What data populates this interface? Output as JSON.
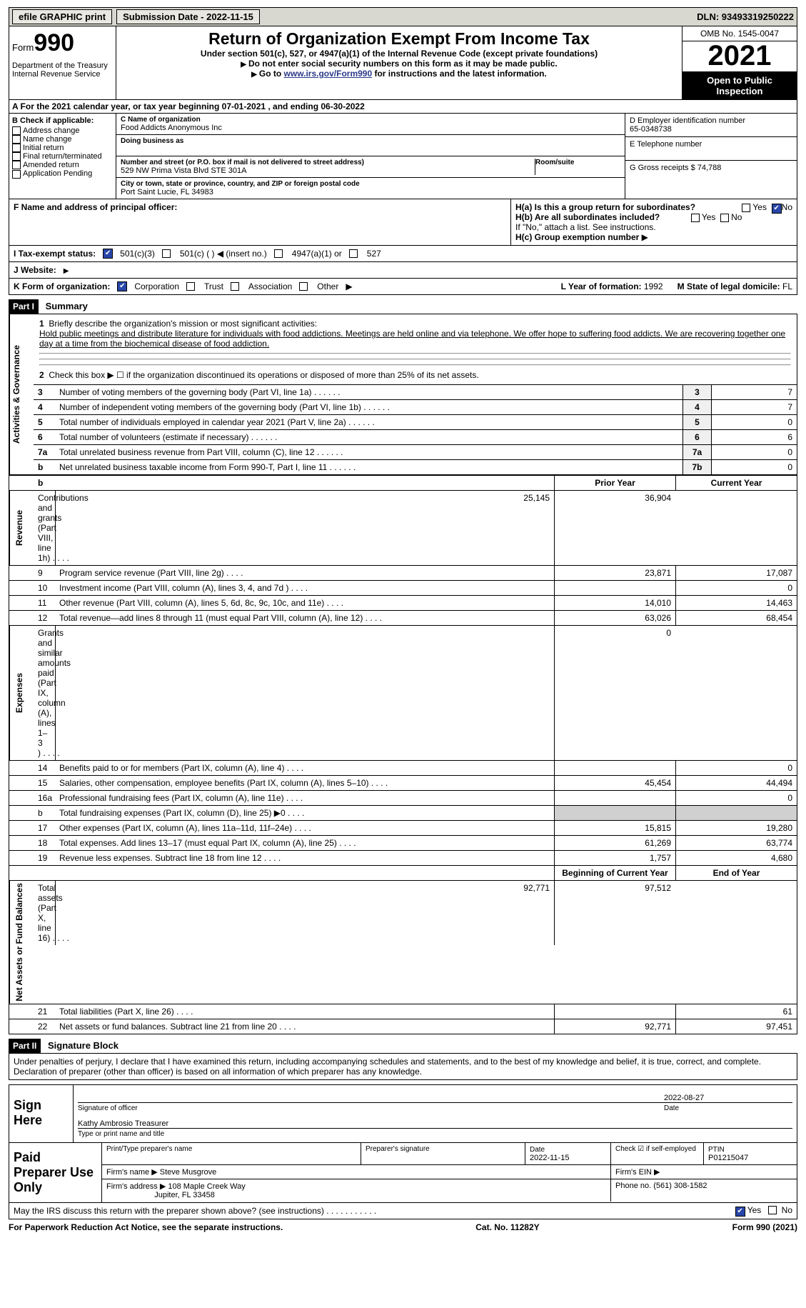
{
  "topbar": {
    "efile_label": "efile GRAPHIC print",
    "submission_label": "Submission Date - 2022-11-15",
    "dln_label": "DLN: 93493319250222"
  },
  "header": {
    "form_word": "Form",
    "form_number": "990",
    "dept": "Department of the Treasury Internal Revenue Service",
    "title": "Return of Organization Exempt From Income Tax",
    "sub1": "Under section 501(c), 527, or 4947(a)(1) of the Internal Revenue Code (except private foundations)",
    "sub2a": "Do not enter social security numbers on this form as it may be made public.",
    "sub2b_pre": "Go to ",
    "sub2b_link": "www.irs.gov/Form990",
    "sub2b_post": " for instructions and the latest information.",
    "omb": "OMB No. 1545-0047",
    "year": "2021",
    "open": "Open to Public Inspection"
  },
  "row_a": "A For the 2021 calendar year, or tax year beginning 07-01-2021   , and ending 06-30-2022",
  "section_b": {
    "b_hd": "B Check if applicable:",
    "b_items": [
      "Address change",
      "Name change",
      "Initial return",
      "Final return/terminated",
      "Amended return",
      "Application Pending"
    ],
    "c_name_lab": "C Name of organization",
    "c_name": "Food Addicts Anonymous Inc",
    "dba_lab": "Doing business as",
    "addr_lab": "Number and street (or P.O. box if mail is not delivered to street address)",
    "room_lab": "Room/suite",
    "addr": "529 NW Prima Vista Blvd STE 301A",
    "city_lab": "City or town, state or province, country, and ZIP or foreign postal code",
    "city": "Port Saint Lucie, FL  34983",
    "d_lab": "D Employer identification number",
    "d_val": "65-0348738",
    "e_lab": "E Telephone number",
    "g_lab": "G Gross receipts $",
    "g_val": "74,788"
  },
  "section_fh": {
    "f_lab": "F Name and address of principal officer:",
    "ha_lab": "H(a)  Is this a group return for subordinates?",
    "hb_lab": "H(b)  Are all subordinates included?",
    "hb_note": "If \"No,\" attach a list. See instructions.",
    "hc_lab": "H(c)  Group exemption number",
    "yes": "Yes",
    "no": "No",
    "i_lab": "I  Tax-exempt status:",
    "i_opts": [
      "501(c)(3)",
      "501(c) (  ) ◀ (insert no.)",
      "4947(a)(1) or",
      "527"
    ],
    "j_lab": "J  Website:",
    "k_lab": "K Form of organization:",
    "k_opts": [
      "Corporation",
      "Trust",
      "Association",
      "Other"
    ],
    "l_lab": "L Year of formation:",
    "l_val": "1992",
    "m_lab": "M State of legal domicile:",
    "m_val": "FL"
  },
  "part1": {
    "part_label": "Part I",
    "part_title": "Summary",
    "side_labels": [
      "Activities & Governance",
      "Revenue",
      "Expenses",
      "Net Assets or Fund Balances"
    ],
    "line1_lab": "Briefly describe the organization's mission or most significant activities:",
    "line1_text": "Hold public meetings and distribute literature for individuals with food addictions. Meetings are held online and via telephone. We offer hope to suffering food addicts. We are recovering together one day at a time from the biochemical disease of food addiction.",
    "line2": "Check this box ▶ ☐  if the organization discontinued its operations or disposed of more than 25% of its net assets.",
    "lines_gov": [
      {
        "n": "3",
        "t": "Number of voting members of the governing body (Part VI, line 1a)",
        "box": "3",
        "v": "7"
      },
      {
        "n": "4",
        "t": "Number of independent voting members of the governing body (Part VI, line 1b)",
        "box": "4",
        "v": "7"
      },
      {
        "n": "5",
        "t": "Total number of individuals employed in calendar year 2021 (Part V, line 2a)",
        "box": "5",
        "v": "0"
      },
      {
        "n": "6",
        "t": "Total number of volunteers (estimate if necessary)",
        "box": "6",
        "v": "6"
      },
      {
        "n": "7a",
        "t": "Total unrelated business revenue from Part VIII, column (C), line 12",
        "box": "7a",
        "v": "0"
      },
      {
        "n": "b",
        "t": "Net unrelated business taxable income from Form 990-T, Part I, line 11",
        "box": "7b",
        "v": "0"
      }
    ],
    "col_prior": "Prior Year",
    "col_current": "Current Year",
    "lines_rev": [
      {
        "n": "8",
        "t": "Contributions and grants (Part VIII, line 1h)",
        "p": "25,145",
        "c": "36,904"
      },
      {
        "n": "9",
        "t": "Program service revenue (Part VIII, line 2g)",
        "p": "23,871",
        "c": "17,087"
      },
      {
        "n": "10",
        "t": "Investment income (Part VIII, column (A), lines 3, 4, and 7d )",
        "p": "",
        "c": "0"
      },
      {
        "n": "11",
        "t": "Other revenue (Part VIII, column (A), lines 5, 6d, 8c, 9c, 10c, and 11e)",
        "p": "14,010",
        "c": "14,463"
      },
      {
        "n": "12",
        "t": "Total revenue—add lines 8 through 11 (must equal Part VIII, column (A), line 12)",
        "p": "63,026",
        "c": "68,454"
      }
    ],
    "lines_exp": [
      {
        "n": "13",
        "t": "Grants and similar amounts paid (Part IX, column (A), lines 1–3 )",
        "p": "",
        "c": "0"
      },
      {
        "n": "14",
        "t": "Benefits paid to or for members (Part IX, column (A), line 4)",
        "p": "",
        "c": "0"
      },
      {
        "n": "15",
        "t": "Salaries, other compensation, employee benefits (Part IX, column (A), lines 5–10)",
        "p": "45,454",
        "c": "44,494"
      },
      {
        "n": "16a",
        "t": "Professional fundraising fees (Part IX, column (A), line 11e)",
        "p": "",
        "c": "0"
      },
      {
        "n": "b",
        "t": "Total fundraising expenses (Part IX, column (D), line 25) ▶0",
        "p": "GREY",
        "c": "GREY"
      },
      {
        "n": "17",
        "t": "Other expenses (Part IX, column (A), lines 11a–11d, 11f–24e)",
        "p": "15,815",
        "c": "19,280"
      },
      {
        "n": "18",
        "t": "Total expenses. Add lines 13–17 (must equal Part IX, column (A), line 25)",
        "p": "61,269",
        "c": "63,774"
      },
      {
        "n": "19",
        "t": "Revenue less expenses. Subtract line 18 from line 12",
        "p": "1,757",
        "c": "4,680"
      }
    ],
    "col_begin": "Beginning of Current Year",
    "col_end": "End of Year",
    "lines_net": [
      {
        "n": "20",
        "t": "Total assets (Part X, line 16)",
        "p": "92,771",
        "c": "97,512"
      },
      {
        "n": "21",
        "t": "Total liabilities (Part X, line 26)",
        "p": "",
        "c": "61"
      },
      {
        "n": "22",
        "t": "Net assets or fund balances. Subtract line 21 from line 20",
        "p": "92,771",
        "c": "97,451"
      }
    ]
  },
  "part2": {
    "part_label": "Part II",
    "part_title": "Signature Block",
    "decl": "Under penalties of perjury, I declare that I have examined this return, including accompanying schedules and statements, and to the best of my knowledge and belief, it is true, correct, and complete. Declaration of preparer (other than officer) is based on all information of which preparer has any knowledge.",
    "sign_here": "Sign Here",
    "sig_officer": "Signature of officer",
    "sig_date": "2022-08-27",
    "date_lab": "Date",
    "officer": "Kathy Ambrosio Treasurer",
    "type_lab": "Type or print name and title",
    "paid": "Paid Preparer Use Only",
    "p_name_lab": "Print/Type preparer's name",
    "p_sig_lab": "Preparer's signature",
    "p_date_lab": "Date",
    "p_date": "2022-11-15",
    "p_check_lab": "Check ☑ if self-employed",
    "ptin_lab": "PTIN",
    "ptin": "P01215047",
    "firm_name_lab": "Firm's name ▶",
    "firm_name": "Steve Musgrove",
    "firm_ein_lab": "Firm's EIN ▶",
    "firm_addr_lab": "Firm's address ▶",
    "firm_addr1": "108 Maple Creek Way",
    "firm_addr2": "Jupiter, FL  33458",
    "phone_lab": "Phone no.",
    "phone": "(561) 308-1582",
    "discuss": "May the IRS discuss this return with the preparer shown above? (see instructions)",
    "discuss_yes": "Yes",
    "discuss_no": "No"
  },
  "footer": {
    "left": "For Paperwork Reduction Act Notice, see the separate instructions.",
    "mid": "Cat. No. 11282Y",
    "right": "Form 990 (2021)"
  }
}
